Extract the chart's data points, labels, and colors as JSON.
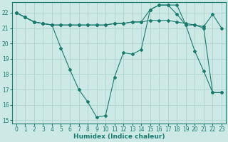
{
  "xlabel": "Humidex (Indice chaleur)",
  "xlim": [
    -0.5,
    23.5
  ],
  "ylim": [
    14.8,
    22.7
  ],
  "yticks": [
    15,
    16,
    17,
    18,
    19,
    20,
    21,
    22
  ],
  "xticks": [
    0,
    1,
    2,
    3,
    4,
    5,
    6,
    7,
    8,
    9,
    10,
    11,
    12,
    13,
    14,
    15,
    16,
    17,
    18,
    19,
    20,
    21,
    22,
    23
  ],
  "background_color": "#cce9e5",
  "grid_color": "#aacfcb",
  "line_color": "#1a7a6e",
  "series": [
    {
      "x": [
        0,
        1,
        2,
        3,
        4,
        5,
        6,
        7,
        8,
        9,
        10,
        11,
        12,
        13,
        14,
        15,
        16,
        17,
        18,
        19,
        20,
        21,
        22,
        23
      ],
      "y": [
        22.0,
        21.7,
        21.4,
        21.3,
        21.2,
        21.2,
        21.2,
        21.2,
        21.2,
        21.2,
        21.2,
        21.3,
        21.3,
        21.4,
        21.4,
        21.5,
        21.5,
        21.5,
        21.4,
        21.3,
        21.2,
        21.1,
        21.9,
        21.0
      ]
    },
    {
      "x": [
        0,
        1,
        2,
        3,
        4,
        5,
        6,
        7,
        8,
        9,
        10,
        11,
        12,
        13,
        14,
        15,
        16,
        17,
        18,
        19,
        20,
        21,
        22,
        23
      ],
      "y": [
        22.0,
        21.7,
        21.4,
        21.3,
        21.2,
        19.7,
        18.3,
        17.0,
        16.2,
        15.2,
        15.3,
        17.8,
        19.4,
        19.3,
        19.6,
        22.2,
        22.5,
        22.5,
        22.5,
        21.2,
        19.5,
        18.2,
        16.8,
        16.8
      ]
    },
    {
      "x": [
        0,
        1,
        2,
        3,
        4,
        5,
        6,
        7,
        8,
        9,
        10,
        11,
        12,
        13,
        14,
        15,
        16,
        17,
        18,
        19,
        20,
        21,
        22,
        23
      ],
      "y": [
        22.0,
        21.7,
        21.4,
        21.3,
        21.2,
        21.2,
        21.2,
        21.2,
        21.2,
        21.2,
        21.2,
        21.3,
        21.3,
        21.4,
        21.4,
        22.2,
        22.5,
        22.5,
        21.9,
        21.2,
        21.2,
        21.0,
        16.8,
        16.8
      ]
    }
  ]
}
